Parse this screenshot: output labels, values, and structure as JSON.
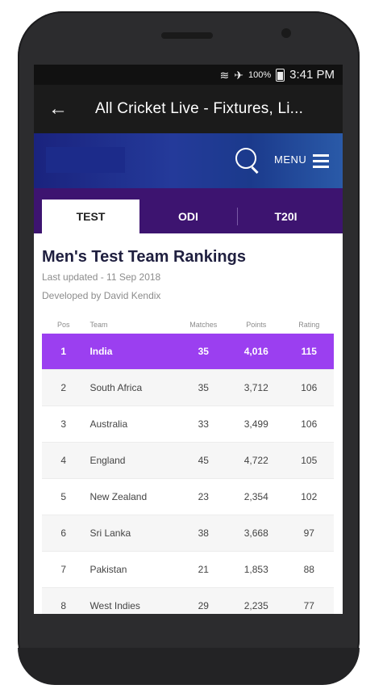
{
  "status": {
    "time": "3:41 PM",
    "battery": "100%"
  },
  "app_bar": {
    "title": "All Cricket Live - Fixtures, Li..."
  },
  "header": {
    "menu_label": "MENU"
  },
  "tabs": [
    {
      "label": "TEST"
    },
    {
      "label": "ODI"
    },
    {
      "label": "T20I"
    }
  ],
  "rankings": {
    "title": "Men's Test Team Rankings",
    "last_updated": "Last updated - 11 Sep 2018",
    "developer": "Developed by David Kendix",
    "columns": [
      "Pos",
      "Team",
      "Matches",
      "Points",
      "Rating"
    ],
    "rows": [
      {
        "pos": "1",
        "team": "India",
        "matches": "35",
        "points": "4,016",
        "rating": "115"
      },
      {
        "pos": "2",
        "team": "South Africa",
        "matches": "35",
        "points": "3,712",
        "rating": "106"
      },
      {
        "pos": "3",
        "team": "Australia",
        "matches": "33",
        "points": "3,499",
        "rating": "106"
      },
      {
        "pos": "4",
        "team": "England",
        "matches": "45",
        "points": "4,722",
        "rating": "105"
      },
      {
        "pos": "5",
        "team": "New Zealand",
        "matches": "23",
        "points": "2,354",
        "rating": "102"
      },
      {
        "pos": "6",
        "team": "Sri Lanka",
        "matches": "38",
        "points": "3,668",
        "rating": "97"
      },
      {
        "pos": "7",
        "team": "Pakistan",
        "matches": "21",
        "points": "1,853",
        "rating": "88"
      },
      {
        "pos": "8",
        "team": "West Indies",
        "matches": "29",
        "points": "2,235",
        "rating": "77"
      }
    ]
  },
  "colors": {
    "accent": "#9b3ff0",
    "tab_bar": "#3d1470",
    "banner": "#1a237e"
  },
  "icons": {
    "back": "arrow-left-icon",
    "search": "search-icon",
    "menu": "hamburger-icon",
    "wifi": "wifi-icon",
    "airplane": "airplane-icon",
    "battery": "battery-icon"
  }
}
